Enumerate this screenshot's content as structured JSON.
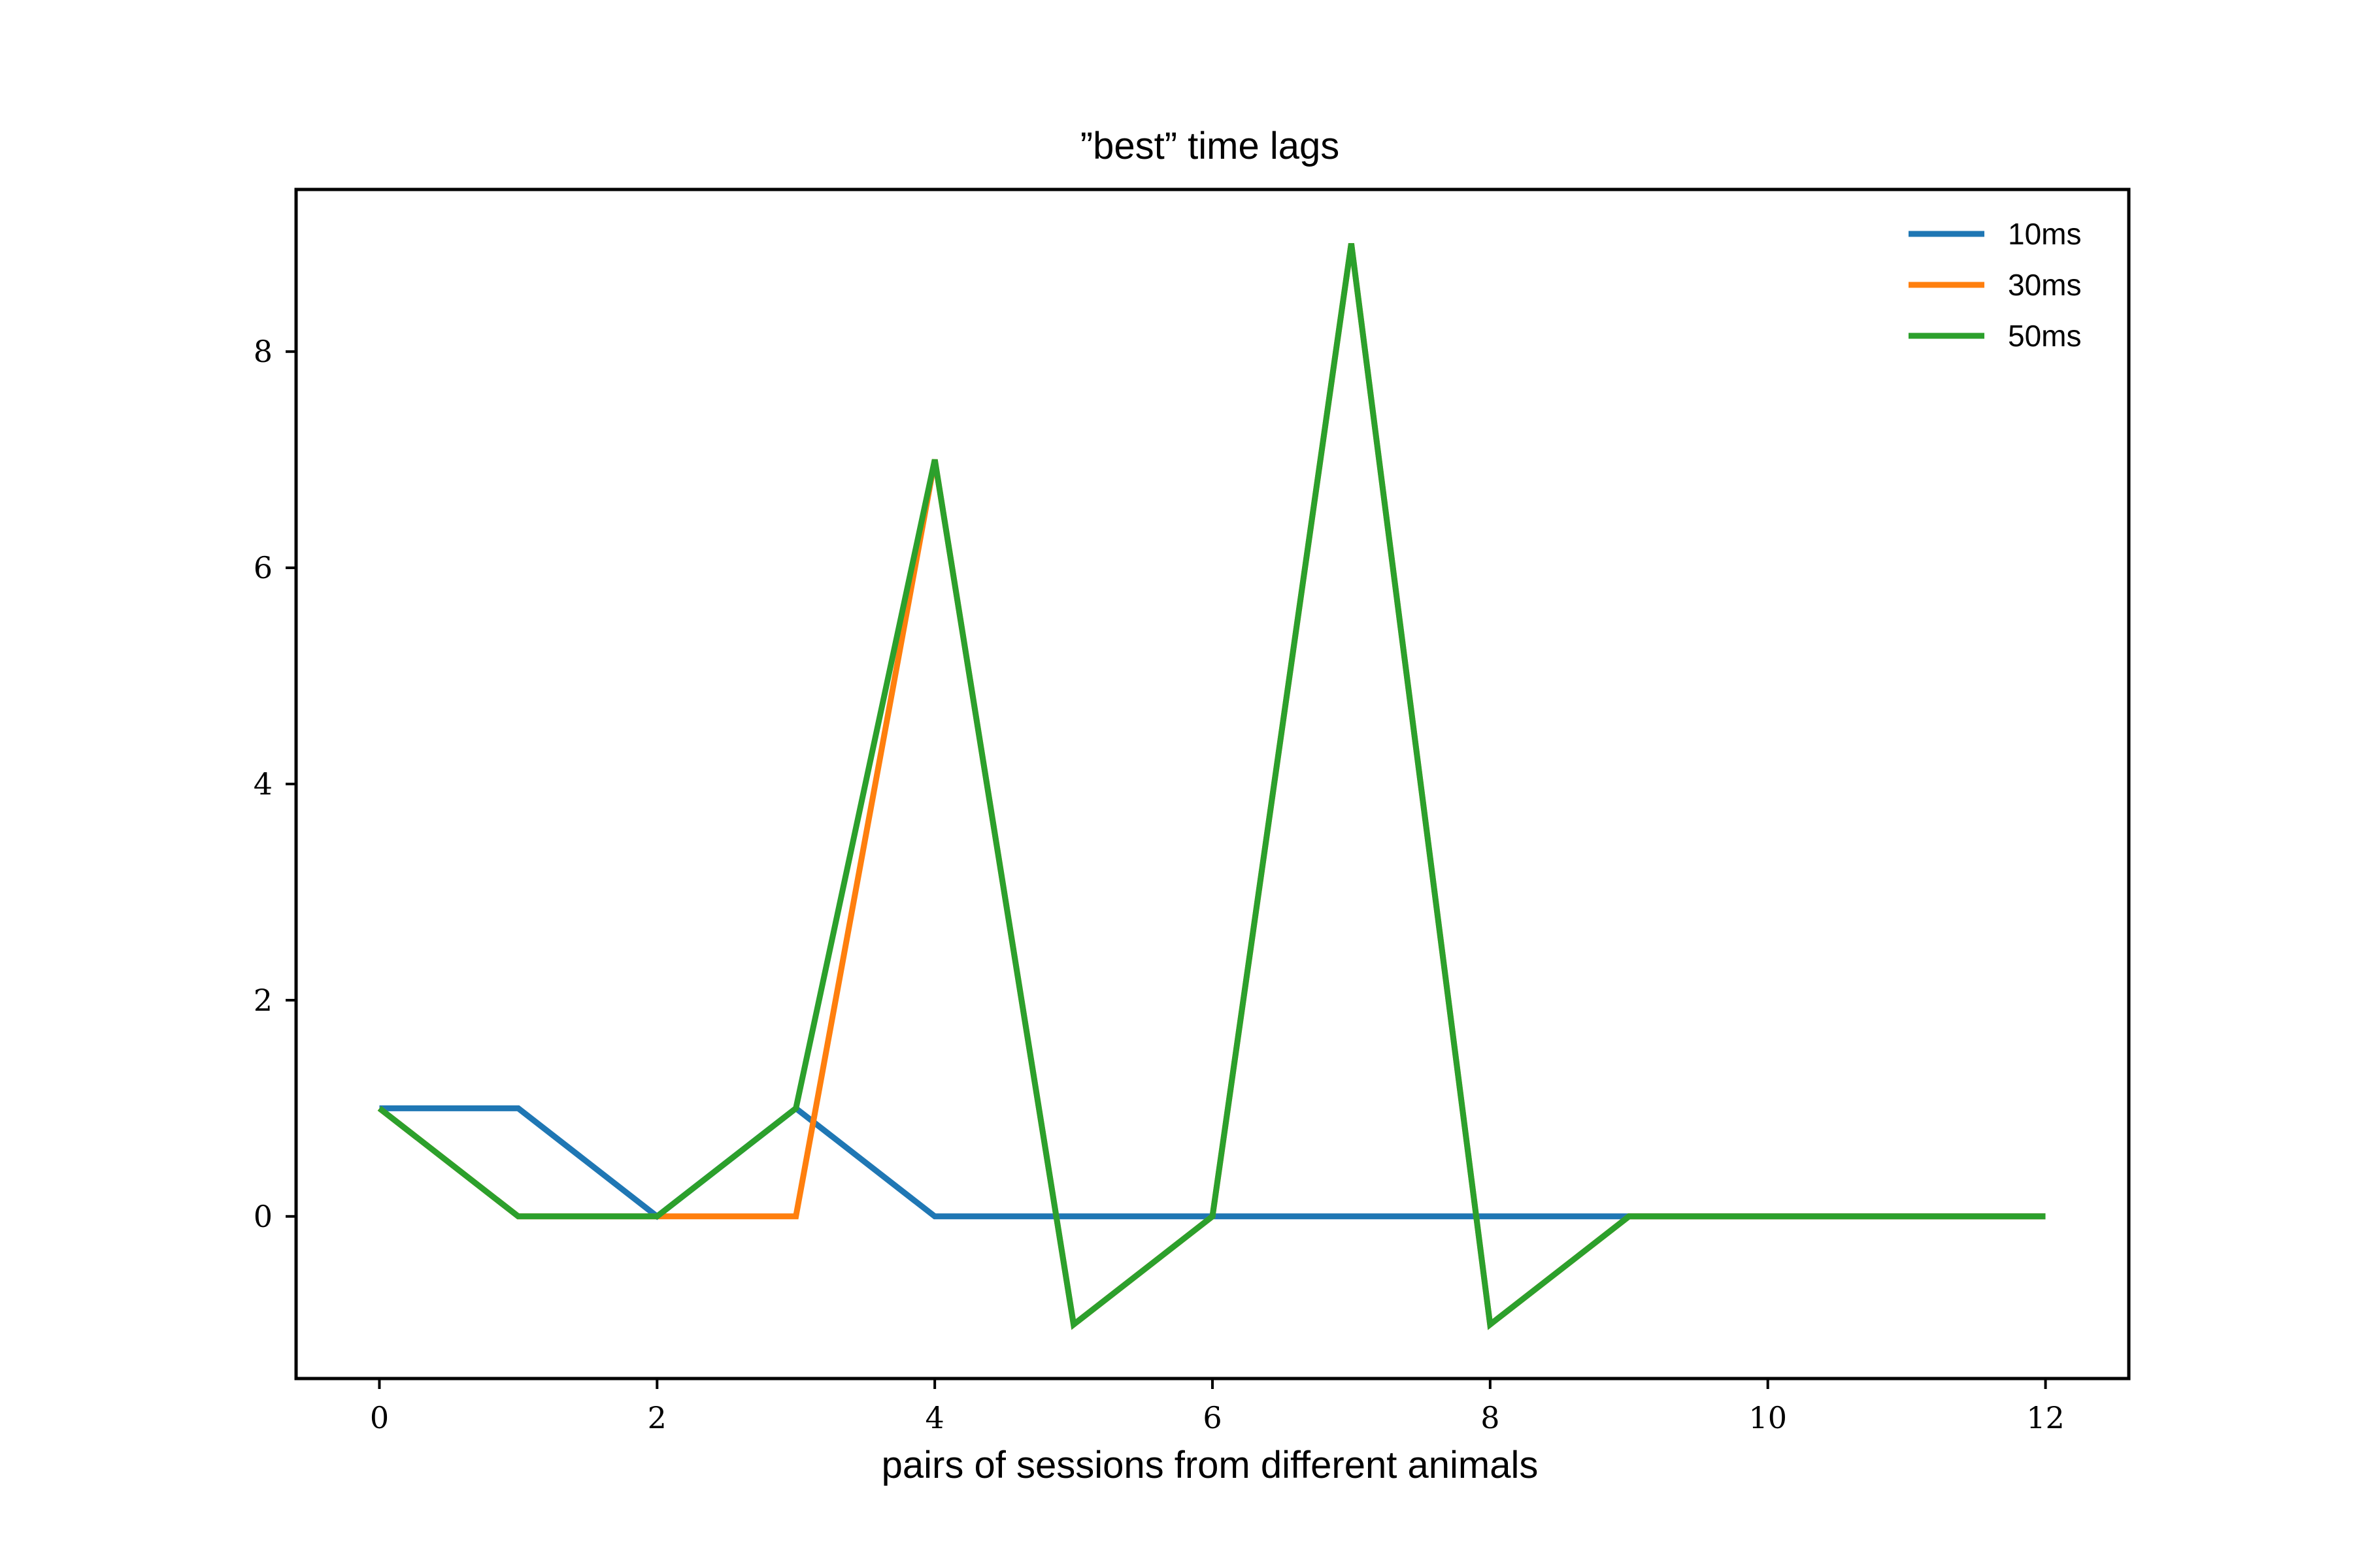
{
  "chart_data": {
    "type": "line",
    "title": "”best” time lags",
    "xlabel": "pairs of sessions from different animals",
    "ylabel": "",
    "x": [
      0,
      1,
      2,
      3,
      4,
      5,
      6,
      7,
      8,
      9,
      10,
      11,
      12
    ],
    "series": [
      {
        "name": "10ms",
        "color": "#1f77b4",
        "values": [
          1,
          1,
          0,
          1,
          0,
          0,
          0,
          0,
          0,
          0,
          0,
          0,
          0
        ]
      },
      {
        "name": "30ms",
        "color": "#ff7f0e",
        "values": [
          1,
          0,
          0,
          0,
          7,
          -1,
          0,
          9,
          -1,
          0,
          0,
          0,
          0
        ]
      },
      {
        "name": "50ms",
        "color": "#2ca02c",
        "values": [
          1,
          0,
          0,
          1,
          7,
          -1,
          0,
          9,
          -1,
          0,
          0,
          0,
          0
        ]
      }
    ],
    "xlim": [
      -0.6,
      12.6
    ],
    "ylim": [
      -1.5,
      9.5
    ],
    "xticks": [
      0,
      2,
      4,
      6,
      8,
      10,
      12
    ],
    "xtick_labels": [
      "0",
      "2",
      "4",
      "6",
      "8",
      "10",
      "12"
    ],
    "yticks": [
      0,
      2,
      4,
      6,
      8
    ],
    "ytick_labels": [
      "0",
      "2",
      "4",
      "6",
      "8"
    ],
    "grid": false,
    "legend_position": "top-right"
  }
}
